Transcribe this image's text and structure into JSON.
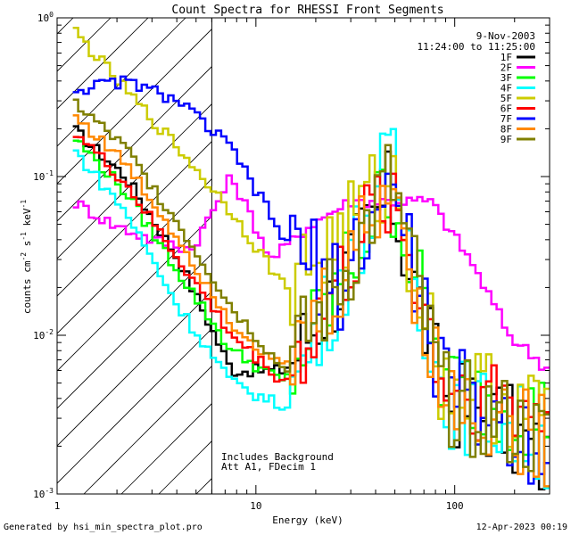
{
  "chart_data": {
    "type": "line",
    "title": "Count Spectra for RHESSI Front Segments",
    "xlabel": "Energy (keV)",
    "ylabel_main": "counts cm",
    "ylabel_exp1": "-2",
    "ylabel_mid": " s",
    "ylabel_exp2": "-1",
    "ylabel_tail": " keV",
    "ylabel_exp3": "-1",
    "xscale": "log",
    "yscale": "log",
    "xlim": [
      1,
      300
    ],
    "ylim": [
      0.001,
      1
    ],
    "xticks": [
      {
        "value": 1,
        "label": "1"
      },
      {
        "value": 10,
        "label": "10"
      },
      {
        "value": 100,
        "label": "100"
      }
    ],
    "yticks": [
      {
        "value": 1,
        "mant": "10",
        "exp": "0"
      },
      {
        "value": 0.1,
        "mant": "10",
        "exp": "-1"
      },
      {
        "value": 0.01,
        "mant": "10",
        "exp": "-2"
      },
      {
        "value": 0.001,
        "mant": "10",
        "exp": "-3"
      }
    ],
    "date": "9-Nov-2003",
    "time_range": "11:24:00 to 11:25:00",
    "annotation_line1": "Includes Background",
    "annotation_line2": "Att A1, FDecim 1",
    "shaded_region_kev": [
      1,
      6
    ],
    "legend_position": "top-right",
    "series": [
      {
        "name": "1F",
        "color": "#000000",
        "values": [
          0.2,
          0.1,
          0.03,
          0.006,
          0.006,
          0.02,
          0.08,
          0.004,
          0.003,
          0.0015
        ]
      },
      {
        "name": "2F",
        "color": "#ff00ff",
        "values": [
          0.07,
          0.05,
          0.04,
          0.035,
          0.1,
          0.03,
          0.05,
          0.07,
          0.07,
          0.07,
          0.03,
          0.01,
          0.006
        ]
      },
      {
        "name": "3F",
        "color": "#00ff00",
        "values": [
          0.18,
          0.08,
          0.025,
          0.008,
          0.005,
          0.02,
          0.09,
          0.005,
          0.004,
          0.003
        ]
      },
      {
        "name": "4F",
        "color": "#00ffff",
        "values": [
          0.15,
          0.06,
          0.015,
          0.005,
          0.0035,
          0.02,
          0.13,
          0.004,
          0.003,
          0.002
        ]
      },
      {
        "name": "5F",
        "color": "#cccc00",
        "values": [
          0.85,
          0.35,
          0.15,
          0.06,
          0.02,
          0.04,
          0.1,
          0.005,
          0.004,
          0.003
        ]
      },
      {
        "name": "6F",
        "color": "#ff0000",
        "values": [
          0.2,
          0.09,
          0.03,
          0.01,
          0.005,
          0.02,
          0.09,
          0.005,
          0.004,
          0.003
        ]
      },
      {
        "name": "7F",
        "color": "#0000ff",
        "values": [
          0.35,
          0.4,
          0.3,
          0.15,
          0.04,
          0.02,
          0.09,
          0.005,
          0.003,
          0.002
        ]
      },
      {
        "name": "8F",
        "color": "#ff8800",
        "values": [
          0.25,
          0.12,
          0.04,
          0.012,
          0.006,
          0.02,
          0.1,
          0.004,
          0.003,
          0.002
        ]
      },
      {
        "name": "9F",
        "color": "#808000",
        "values": [
          0.3,
          0.15,
          0.05,
          0.015,
          0.006,
          0.02,
          0.1,
          0.004,
          0.003,
          0.002
        ]
      }
    ]
  },
  "footer": {
    "generated_by": "Generated by hsi_min_spectra_plot.pro",
    "timestamp": "12-Apr-2023 00:19"
  }
}
